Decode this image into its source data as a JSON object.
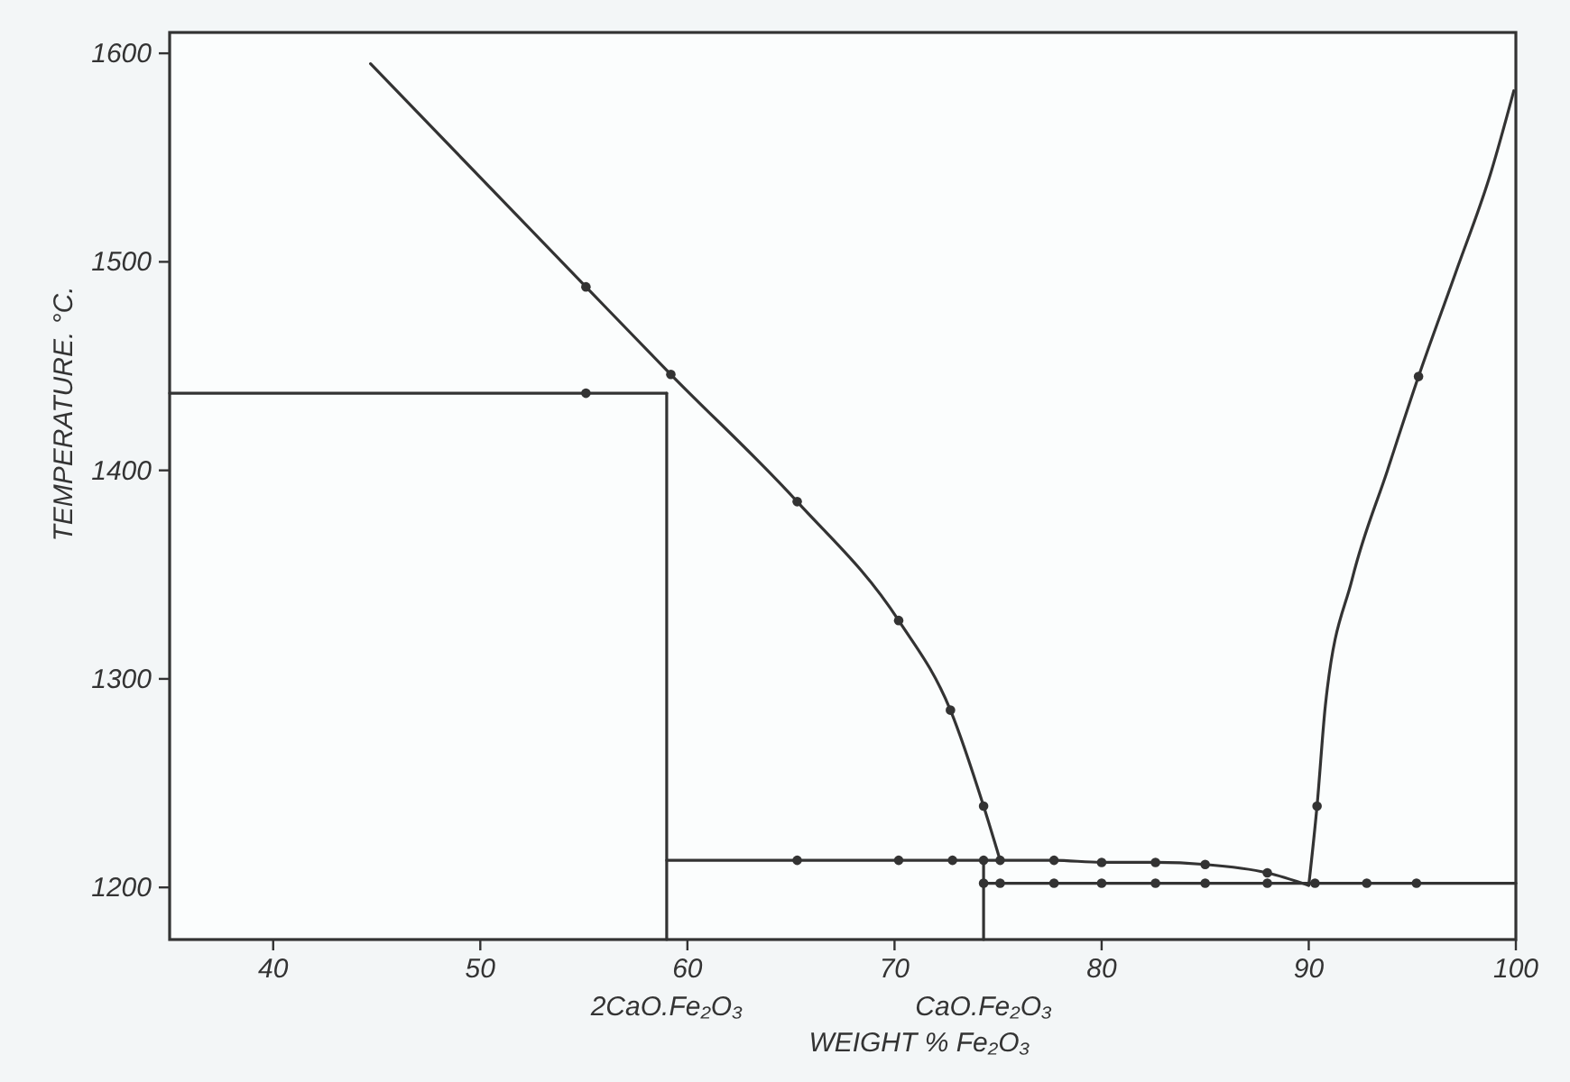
{
  "chart_data": {
    "type": "line",
    "xlabel": "WEIGHT % Fe₂O₃",
    "ylabel": "TEMPERATURE. °C.",
    "xlim": [
      35,
      100
    ],
    "ylim": [
      1175,
      1610
    ],
    "xticks": [
      40,
      50,
      60,
      70,
      80,
      90,
      100
    ],
    "yticks": [
      1200,
      1300,
      1400,
      1500,
      1600
    ],
    "grid": false,
    "line_style": "solid",
    "series": [
      {
        "type": "line",
        "color": "#333333",
        "x": [
          44.7,
          55.1,
          59.2,
          65.3,
          70.2,
          72.7,
          74.3,
          75.1
        ],
        "values": [
          1595,
          1488,
          1446,
          1385,
          1328,
          1285,
          1239,
          1213
        ]
      },
      {
        "type": "line",
        "color": "#333333",
        "x": [
          35,
          59
        ],
        "values": [
          1437,
          1437
        ]
      },
      {
        "type": "line",
        "color": "#333333",
        "x": [
          59,
          59
        ],
        "values": [
          1437,
          1175
        ]
      },
      {
        "type": "line",
        "color": "#333333",
        "x": [
          59,
          65.3,
          70.2,
          75.1,
          77.7,
          80,
          82.6,
          85,
          88,
          90
        ],
        "values": [
          1213,
          1213,
          1213,
          1213,
          1213,
          1212,
          1212,
          1211,
          1207,
          1201
        ]
      },
      {
        "type": "line",
        "color": "#333333",
        "x": [
          74.3,
          100
        ],
        "values": [
          1202,
          1202
        ]
      },
      {
        "type": "line",
        "color": "#333333",
        "x": [
          74.3,
          74.3
        ],
        "values": [
          1213,
          1175
        ]
      },
      {
        "type": "line",
        "color": "#333333",
        "x": [
          90,
          90.4,
          90.8,
          92.1,
          93.8,
          95.3,
          97.1,
          98.8,
          99.9
        ],
        "values": [
          1201,
          1239,
          1287,
          1348,
          1400,
          1445,
          1495,
          1543,
          1582
        ]
      },
      {
        "type": "scatter",
        "color": "#333333",
        "marker": "circle",
        "x": [
          55.1,
          59.2,
          65.3,
          70.2,
          72.7,
          74.3,
          55.1,
          65.3,
          70.2,
          72.8,
          74.3,
          75.1,
          77.7,
          80,
          82.6,
          85,
          88,
          74.3,
          75.1,
          77.7,
          80,
          82.6,
          85,
          88,
          90.3,
          92.8,
          95.2,
          90.4,
          95.3
        ],
        "values": [
          1488,
          1446,
          1385,
          1328,
          1285,
          1239,
          1437,
          1213,
          1213,
          1213,
          1213,
          1213,
          1213,
          1212,
          1212,
          1211,
          1207,
          1202,
          1202,
          1202,
          1202,
          1202,
          1202,
          1202,
          1202,
          1202,
          1202,
          1239,
          1445
        ]
      }
    ],
    "annotations": [
      {
        "text": "2CaO.Fe₂O₃",
        "x": 59,
        "y": 1175
      },
      {
        "text": "CaO.Fe₂O₃",
        "x": 74.3,
        "y": 1175
      }
    ]
  }
}
